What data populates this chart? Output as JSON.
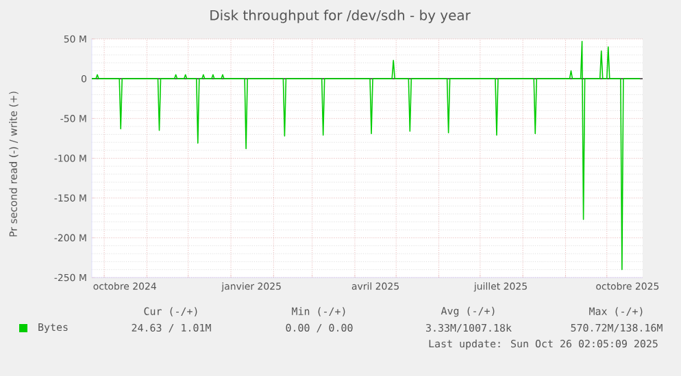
{
  "chart_data": {
    "type": "line",
    "title": "Disk throughput for /dev/sdh - by year",
    "ylabel": "Pr second read (-) / write (+)",
    "x": [
      "2024-09-22",
      "2024-09-25",
      "2024-09-26",
      "2024-09-27",
      "2024-10-12",
      "2024-10-13",
      "2024-10-14",
      "2024-11-09",
      "2024-11-10",
      "2024-11-11",
      "2024-11-21",
      "2024-11-22",
      "2024-11-23",
      "2024-11-28",
      "2024-11-29",
      "2024-11-30",
      "2024-12-07",
      "2024-12-08",
      "2024-12-09",
      "2024-12-11",
      "2024-12-12",
      "2024-12-13",
      "2024-12-18",
      "2024-12-19",
      "2024-12-20",
      "2024-12-25",
      "2024-12-26",
      "2024-12-27",
      "2025-01-11",
      "2025-01-12",
      "2025-01-13",
      "2025-02-08",
      "2025-02-09",
      "2025-02-10",
      "2025-03-08",
      "2025-03-09",
      "2025-03-10",
      "2025-04-12",
      "2025-04-13",
      "2025-04-14",
      "2025-04-28",
      "2025-04-29",
      "2025-04-30",
      "2025-05-10",
      "2025-05-11",
      "2025-05-12",
      "2025-06-07",
      "2025-06-08",
      "2025-06-09",
      "2025-07-12",
      "2025-07-13",
      "2025-07-14",
      "2025-08-09",
      "2025-08-10",
      "2025-08-11",
      "2025-09-04",
      "2025-09-05",
      "2025-09-06",
      "2025-09-12",
      "2025-09-13",
      "2025-09-14",
      "2025-09-15",
      "2025-09-26",
      "2025-09-27",
      "2025-09-28",
      "2025-10-01",
      "2025-10-02",
      "2025-10-03",
      "2025-10-11",
      "2025-10-12",
      "2025-10-13",
      "2025-10-25"
    ],
    "series": [
      {
        "name": "Bytes",
        "color": "#00cc00",
        "values": [
          0,
          0,
          5,
          0,
          0,
          -63,
          0,
          0,
          -65,
          0,
          0,
          5,
          0,
          0,
          5,
          0,
          0,
          -81,
          0,
          0,
          5,
          0,
          0,
          5,
          0,
          0,
          5,
          0,
          0,
          -88,
          0,
          0,
          -72,
          0,
          0,
          -71,
          0,
          0,
          -69,
          0,
          0,
          23,
          0,
          0,
          -66,
          0,
          0,
          -68,
          0,
          0,
          -71,
          0,
          0,
          -69,
          0,
          0,
          10,
          0,
          0,
          47,
          -177,
          0,
          0,
          35,
          0,
          0,
          40,
          0,
          0,
          -240,
          0,
          0
        ]
      }
    ],
    "xlim": [
      "2024-09-22",
      "2025-10-27"
    ],
    "xticks": [
      {
        "value": "2024-10-01",
        "label": null
      },
      {
        "value": "2024-11-01",
        "label": null
      },
      {
        "value": "2024-12-01",
        "label": null
      },
      {
        "value": "2025-01-01",
        "label": null
      },
      {
        "value": "2025-02-01",
        "label": null
      },
      {
        "value": "2025-03-01",
        "label": null
      },
      {
        "value": "2025-04-01",
        "label": null
      },
      {
        "value": "2025-05-01",
        "label": null
      },
      {
        "value": "2025-06-01",
        "label": null
      },
      {
        "value": "2025-07-01",
        "label": null
      },
      {
        "value": "2025-08-01",
        "label": null
      },
      {
        "value": "2025-09-01",
        "label": null
      },
      {
        "value": "2025-10-01",
        "label": null
      },
      {
        "value": "2024-10-16",
        "label": "octobre 2024"
      },
      {
        "value": "2025-01-16",
        "label": "janvier 2025"
      },
      {
        "value": "2025-04-16",
        "label": "avril 2025"
      },
      {
        "value": "2025-07-16",
        "label": "juillet 2025"
      },
      {
        "value": "2025-10-16",
        "label": "octobre 2025"
      }
    ],
    "ylim": [
      -250,
      50
    ],
    "yticks": [
      {
        "value": -250,
        "label": "-250 M"
      },
      {
        "value": -200,
        "label": "-200 M"
      },
      {
        "value": -150,
        "label": "-150 M"
      },
      {
        "value": -100,
        "label": "-100 M"
      },
      {
        "value": -50,
        "label": "-50 M"
      },
      0,
      {
        "value": 50,
        "label": "50 M"
      }
    ],
    "grid": true,
    "legend": "bottom",
    "annotations": [
      "Cur (-/+)",
      "Min (-/+)",
      "Avg (-/+)",
      "Max (-/+)",
      "24.63 / 1.01M",
      "0.00 / 0.00",
      "3.33M/1007.18k",
      "570.72M/138.16M",
      "Last update: Sun Oct 26 02:05:09 2025"
    ]
  }
}
